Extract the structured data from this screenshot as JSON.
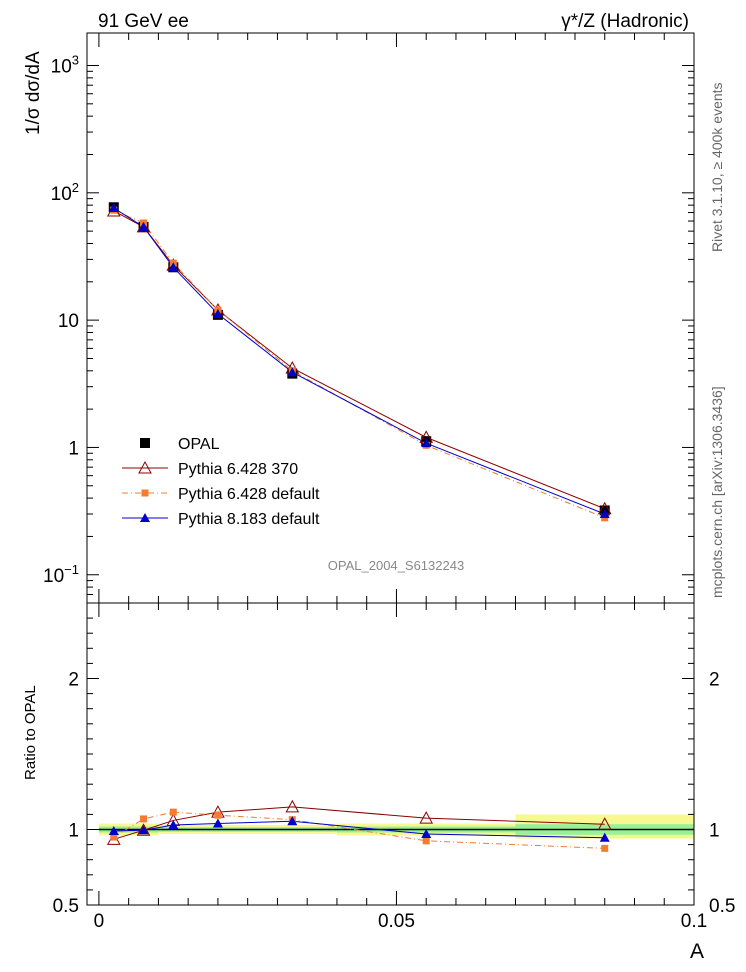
{
  "header": {
    "left": "91 GeV ee",
    "right": "γ*/Z (Hadronic)"
  },
  "side_labels": {
    "rivet": "Rivet 3.1.10, ≥ 400k events",
    "mcplots": "mcplots.cern.ch [arXiv:1306.3436]"
  },
  "analysis_id": "OPAL_2004_S6132243",
  "legend": [
    {
      "label": "OPAL",
      "color": "#000000",
      "marker": "square",
      "line": "none"
    },
    {
      "label": "Pythia 6.428 370",
      "color": "#8b0000",
      "marker": "open-triangle",
      "line": "solid"
    },
    {
      "label": "Pythia 6.428 default",
      "color": "#f47c30",
      "marker": "small-square",
      "line": "dashdot"
    },
    {
      "label": "Pythia 8.183 default",
      "color": "#0000cc",
      "marker": "filled-triangle",
      "line": "solid"
    }
  ],
  "chart_data": [
    {
      "type": "line",
      "panel": "main",
      "ylabel": "1/σ dσ/dA",
      "yscale": "log",
      "ylim": [
        0.06,
        1800
      ],
      "xlim": [
        -0.002,
        0.1
      ],
      "y_ticks": [
        {
          "value": 0.1,
          "base": "10",
          "exp": "−1"
        },
        {
          "value": 1,
          "label": "1"
        },
        {
          "value": 10,
          "label": "10"
        },
        {
          "value": 100,
          "base": "10",
          "exp": "2"
        },
        {
          "value": 1000,
          "base": "10",
          "exp": "3"
        }
      ],
      "x": [
        0.0025,
        0.0075,
        0.0125,
        0.02,
        0.0325,
        0.055,
        0.085
      ],
      "series": [
        {
          "name": "OPAL",
          "values": [
            77,
            54,
            26,
            11,
            3.8,
            1.12,
            0.32
          ]
        },
        {
          "name": "Pythia 6.428 370",
          "values": [
            72,
            54,
            27,
            12,
            4.2,
            1.2,
            0.33
          ]
        },
        {
          "name": "Pythia 6.428 default",
          "values": [
            73,
            58,
            28,
            12,
            4.0,
            1.04,
            0.28
          ]
        },
        {
          "name": "Pythia 8.183 default",
          "values": [
            76,
            54,
            26,
            11.2,
            3.9,
            1.08,
            0.3
          ]
        }
      ]
    },
    {
      "type": "line",
      "panel": "ratio",
      "ylabel": "Ratio to OPAL",
      "xlabel": "A",
      "ylim": [
        0.5,
        2.5
      ],
      "xlim": [
        -0.002,
        0.1
      ],
      "y_ticks": [
        {
          "value": 0.5,
          "label": "0.5"
        },
        {
          "value": 1,
          "label": "1"
        },
        {
          "value": 2,
          "label": "2"
        }
      ],
      "x_ticks": [
        {
          "value": 0,
          "label": "0"
        },
        {
          "value": 0.05,
          "label": "0.05"
        },
        {
          "value": 0.1,
          "label": "0.1"
        }
      ],
      "bands": [
        {
          "x": [
            0.0,
            0.005
          ],
          "inner": [
            0.98,
            1.02
          ],
          "outer": [
            0.96,
            1.04
          ]
        },
        {
          "x": [
            0.005,
            0.01
          ],
          "inner": [
            0.98,
            1.02
          ],
          "outer": [
            0.96,
            1.04
          ]
        },
        {
          "x": [
            0.01,
            0.015
          ],
          "inner": [
            0.985,
            1.015
          ],
          "outer": [
            0.97,
            1.03
          ]
        },
        {
          "x": [
            0.015,
            0.025
          ],
          "inner": [
            0.985,
            1.015
          ],
          "outer": [
            0.97,
            1.03
          ]
        },
        {
          "x": [
            0.025,
            0.04
          ],
          "inner": [
            0.985,
            1.015
          ],
          "outer": [
            0.97,
            1.03
          ]
        },
        {
          "x": [
            0.04,
            0.07
          ],
          "inner": [
            0.98,
            1.02
          ],
          "outer": [
            0.96,
            1.04
          ]
        },
        {
          "x": [
            0.07,
            0.1
          ],
          "inner": [
            0.965,
            1.035
          ],
          "outer": [
            0.94,
            1.1
          ]
        }
      ],
      "x": [
        0.0025,
        0.0075,
        0.0125,
        0.02,
        0.0325,
        0.055,
        0.085
      ],
      "series": [
        {
          "name": "Pythia 6.428 370",
          "values": [
            0.935,
            0.995,
            1.06,
            1.115,
            1.15,
            1.075,
            1.035
          ]
        },
        {
          "name": "Pythia 6.428 default",
          "values": [
            0.95,
            1.07,
            1.115,
            1.095,
            1.065,
            0.925,
            0.875
          ]
        },
        {
          "name": "Pythia 8.183 default",
          "values": [
            0.99,
            0.995,
            1.03,
            1.04,
            1.055,
            0.97,
            0.945
          ]
        }
      ]
    }
  ],
  "colors": {
    "band_inner": "#98f098",
    "band_outer": "#f8f890",
    "axis": "#000000",
    "side_text": "#666666",
    "analysis_text": "#888888"
  }
}
